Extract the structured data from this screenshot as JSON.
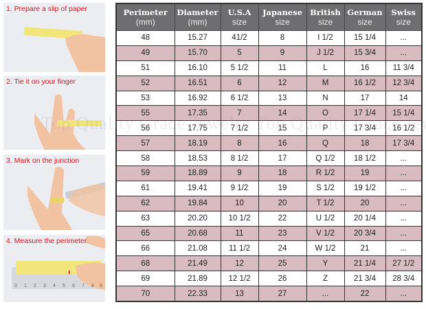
{
  "steps": [
    {
      "label": "1. Prepare a slip of paper"
    },
    {
      "label": "2. Tie it on your finger"
    },
    {
      "label": "3. Mark on the junction"
    },
    {
      "label": "4. Measure the perimeter"
    }
  ],
  "ruler_ticks": [
    "0",
    "1",
    "2",
    "3",
    "4",
    "5",
    "6",
    "7",
    "8",
    "9"
  ],
  "watermark": "Top Quality Grace Jewelry Top Quality Grace Jewelry",
  "colors": {
    "header_bg": "#6e6e70",
    "row_pink": "#d8bcc1",
    "row_white": "#ffffff",
    "step_label": "#d0141e"
  },
  "table": {
    "headers": [
      {
        "line1": "Perimeter",
        "line2": "(mm)"
      },
      {
        "line1": "Diameter",
        "line2": "(mm)"
      },
      {
        "line1": "U.S.A",
        "line2": "size"
      },
      {
        "line1": "Japanese",
        "line2": "size"
      },
      {
        "line1": "British",
        "line2": "size"
      },
      {
        "line1": "German",
        "line2": "size"
      },
      {
        "line1": "Swiss",
        "line2": "size"
      }
    ],
    "rows": [
      [
        "48",
        "15.27",
        "41/2",
        "8",
        "I 1/2",
        "15 1/4",
        "..."
      ],
      [
        "49",
        "15.70",
        "5",
        "9",
        "J 1/2",
        "15 3/4",
        "..."
      ],
      [
        "51",
        "16.10",
        "5 1/2",
        "11",
        "L",
        "16",
        "11 3/4"
      ],
      [
        "52",
        "16.51",
        "6",
        "12",
        "M",
        "16 1/2",
        "12 3/4"
      ],
      [
        "53",
        "16.92",
        "6 1/2",
        "13",
        "N",
        "17",
        "14"
      ],
      [
        "55",
        "17.35",
        "7",
        "14",
        "O",
        "17 1/4",
        "15 1/4"
      ],
      [
        "56",
        "17.75",
        "7 1/2",
        "15",
        "P",
        "17 3/4",
        "16 1/2"
      ],
      [
        "57",
        "18.19",
        "8",
        "16",
        "Q",
        "18",
        "17 3/4"
      ],
      [
        "58",
        "18.53",
        "8 1/2",
        "17",
        "Q  1/2",
        "18 1/2",
        "..."
      ],
      [
        "59",
        "18.89",
        "9",
        "18",
        "R 1/2",
        "19",
        "..."
      ],
      [
        "61",
        "19.41",
        "9 1/2",
        "19",
        "S 1/2",
        "19 1/2",
        "..."
      ],
      [
        "62",
        "19.84",
        "10",
        "20",
        "T 1/2",
        "20",
        "..."
      ],
      [
        "63",
        "20.20",
        "10 1/2",
        "22",
        "U 1/2",
        "20 1/4",
        "..."
      ],
      [
        "65",
        "20.68",
        "11",
        "23",
        "V 1/2",
        "20 3/4",
        "..."
      ],
      [
        "66",
        "21.08",
        "11 1/2",
        "24",
        "W 1/2",
        "21",
        "..."
      ],
      [
        "68",
        "21.49",
        "12",
        "25",
        "Y",
        "21 1/4",
        "27 1/2"
      ],
      [
        "69",
        "21.89",
        "12 1/2",
        "26",
        "Z",
        "21 3/4",
        "28 3/4"
      ],
      [
        "70",
        "22.33",
        "13",
        "27",
        "...",
        "22",
        "..."
      ]
    ]
  }
}
